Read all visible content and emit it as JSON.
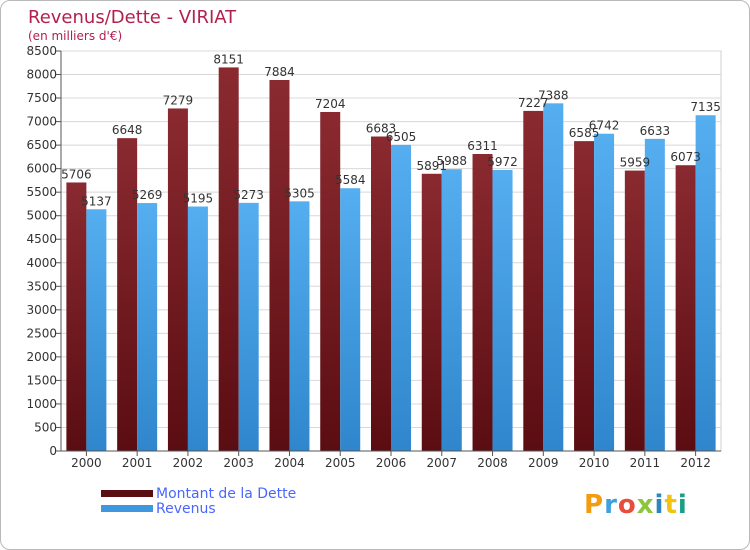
{
  "chart_data": {
    "type": "bar",
    "title": "Revenus/Dette - VIRIAT",
    "subtitle": "(en milliers d'€)",
    "categories": [
      "2000",
      "2001",
      "2002",
      "2003",
      "2004",
      "2005",
      "2006",
      "2007",
      "2008",
      "2009",
      "2010",
      "2011",
      "2012"
    ],
    "series": [
      {
        "name": "Montant de la Dette",
        "color": "#7a1f24",
        "values": [
          5706,
          6648,
          7279,
          8151,
          7884,
          7204,
          6683,
          5891,
          6311,
          7227,
          6585,
          5959,
          6073
        ]
      },
      {
        "name": "Revenus",
        "color": "#3d98e0",
        "values": [
          5137,
          5269,
          5195,
          5273,
          5305,
          5584,
          6505,
          5988,
          5972,
          7388,
          6742,
          6633,
          7135
        ]
      }
    ],
    "ylim": [
      0,
      8500
    ],
    "ytick_step": 500,
    "grid": true,
    "legend_position": "bottom-left"
  },
  "logo": {
    "text": "Proxiti",
    "colors": [
      "#f39c12",
      "#3ea0dd",
      "#e74c3c",
      "#8cc63f",
      "#2e86c1",
      "#f1c40f",
      "#16a085"
    ]
  }
}
